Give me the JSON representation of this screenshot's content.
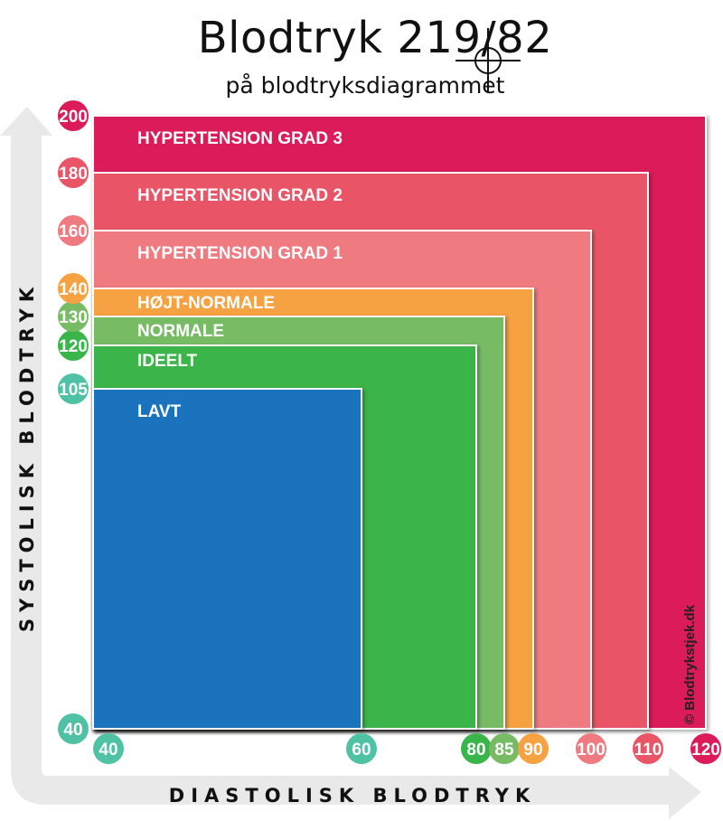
{
  "title": "Blodtryk 219/82",
  "subtitle": "på blodtryksdiagrammet",
  "credit": "© Blodtrykstjek.dk",
  "chart_data": {
    "type": "area",
    "xlabel": "DIASTOLISK BLODTRYK",
    "ylabel": "SYSTOLISK BLODTRYK",
    "x_ticks": [
      {
        "value": 40,
        "label": "40",
        "color": "#4fc2a6"
      },
      {
        "value": 60,
        "label": "60",
        "color": "#4fc2a6"
      },
      {
        "value": 80,
        "label": "80",
        "color": "#3ab54a"
      },
      {
        "value": 85,
        "label": "85",
        "color": "#77bb65"
      },
      {
        "value": 90,
        "label": "90",
        "color": "#f6a142"
      },
      {
        "value": 100,
        "label": "100",
        "color": "#ef7a80"
      },
      {
        "value": 110,
        "label": "110",
        "color": "#e95566"
      },
      {
        "value": 120,
        "label": "120",
        "color": "#dc1b5a"
      }
    ],
    "y_ticks": [
      {
        "value": 40,
        "label": "40",
        "color": "#4fc2a6"
      },
      {
        "value": 105,
        "label": "105",
        "color": "#4fc2a6"
      },
      {
        "value": 120,
        "label": "120",
        "color": "#3ab54a"
      },
      {
        "value": 130,
        "label": "130",
        "color": "#77bb65"
      },
      {
        "value": 140,
        "label": "140",
        "color": "#f6a142"
      },
      {
        "value": 160,
        "label": "160",
        "color": "#ef7a80"
      },
      {
        "value": 180,
        "label": "180",
        "color": "#e95566"
      },
      {
        "value": 200,
        "label": "200",
        "color": "#dc1b5a"
      }
    ],
    "zones": [
      {
        "name": "HYPERTENSION GRAD 3",
        "max_diastolic": 120,
        "max_systolic": 200,
        "color": "#dc1b5a"
      },
      {
        "name": "HYPERTENSION GRAD 2",
        "max_diastolic": 110,
        "max_systolic": 180,
        "color": "#e95566"
      },
      {
        "name": "HYPERTENSION GRAD 1",
        "max_diastolic": 100,
        "max_systolic": 160,
        "color": "#ef7a80"
      },
      {
        "name": "HØJT-NORMALE",
        "max_diastolic": 90,
        "max_systolic": 140,
        "color": "#f6a142"
      },
      {
        "name": "NORMALE",
        "max_diastolic": 85,
        "max_systolic": 130,
        "color": "#77bb65"
      },
      {
        "name": "IDEELT",
        "max_diastolic": 80,
        "max_systolic": 120,
        "color": "#3ab54a"
      },
      {
        "name": "LAVT",
        "max_diastolic": 60,
        "max_systolic": 105,
        "color": "#1e73bd"
      }
    ],
    "marker": {
      "systolic": 219,
      "diastolic": 82
    }
  }
}
